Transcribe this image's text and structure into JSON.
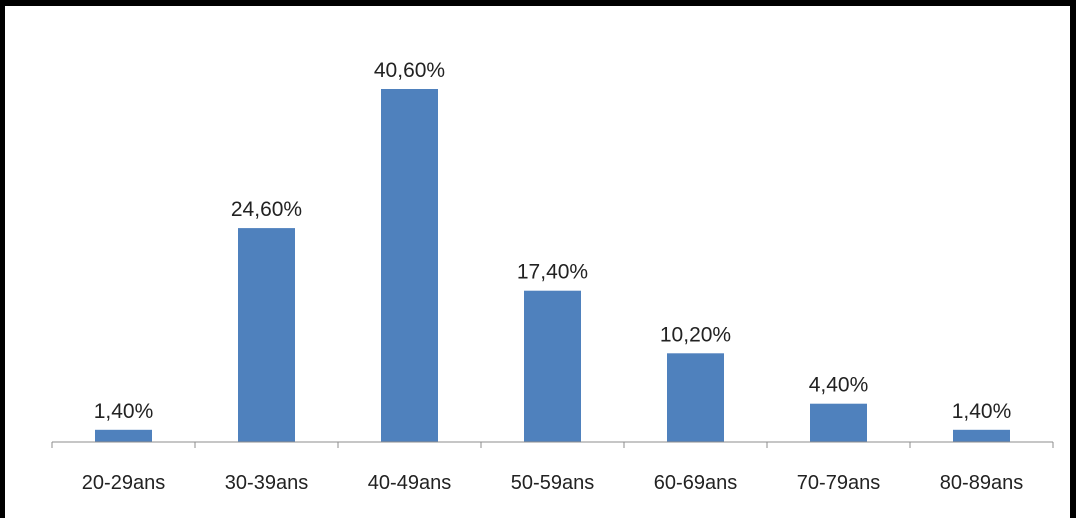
{
  "chart_data": {
    "type": "bar",
    "categories": [
      "20-29ans",
      "30-39ans",
      "40-49ans",
      "50-59ans",
      "60-69ans",
      "70-79ans",
      "80-89ans"
    ],
    "values": [
      1.4,
      24.6,
      40.6,
      17.4,
      10.2,
      4.4,
      1.4
    ],
    "value_labels": [
      "1,40%",
      "24,60%",
      "40,60%",
      "17,40%",
      "10,20%",
      "4,40%",
      "1,40%"
    ],
    "title": "",
    "xlabel": "",
    "ylabel": "",
    "ylim": [
      0,
      45
    ],
    "grid": false,
    "legend": "none",
    "bar_color": "#4f81bd",
    "axis_color": "#8c8c8c"
  }
}
